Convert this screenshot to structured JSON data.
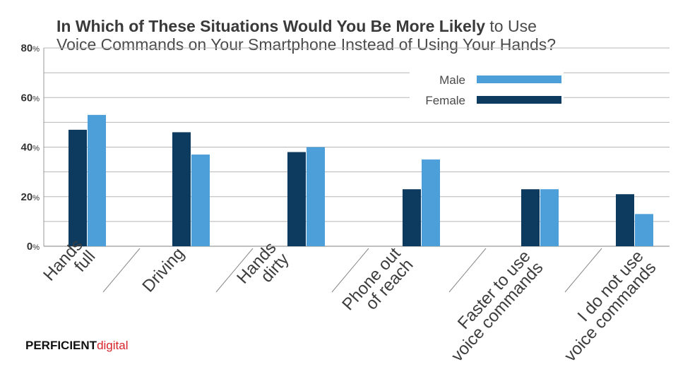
{
  "title": {
    "bold": "In Which of These Situations Would You Be More Likely",
    "line1_rest": "to Use",
    "line2": "Voice Commands on Your Smartphone Instead of Using Your Hands?"
  },
  "brand": {
    "part1": "PERFICIENT",
    "part2": "digital"
  },
  "colors": {
    "male": "#4d9fd9",
    "female": "#0d3b60",
    "grid": "#b5b5b5",
    "text": "#4a4a4a"
  },
  "chart_data": {
    "type": "bar",
    "title": "In Which of These Situations Would You Be More Likely to Use Voice Commands on Your Smartphone Instead of Using Your Hands?",
    "categories": [
      [
        "Hands",
        "full"
      ],
      [
        "Driving"
      ],
      [
        "Hands",
        "dirty"
      ],
      [
        "Phone out",
        "of reach"
      ],
      [
        "Faster to use",
        "voice commands"
      ],
      [
        "I do not use",
        "voice commands"
      ]
    ],
    "series": [
      {
        "name": "Female",
        "values": [
          47,
          46,
          38,
          23,
          23,
          21
        ]
      },
      {
        "name": "Male",
        "values": [
          53,
          37,
          40,
          35,
          23,
          13
        ]
      }
    ],
    "ylim": [
      0,
      80
    ],
    "yticks": [
      {
        "value": 0,
        "num": "0",
        "unit": "%"
      },
      {
        "value": 20,
        "num": "20",
        "unit": "%"
      },
      {
        "value": 40,
        "num": "40",
        "unit": "%"
      },
      {
        "value": 60,
        "num": "60",
        "unit": "%"
      },
      {
        "value": 80,
        "num": "80",
        "unit": "%"
      }
    ],
    "grid_step": 10,
    "grid": true,
    "legend": [
      {
        "label": "Male",
        "series": "Male"
      },
      {
        "label": "Female",
        "series": "Female"
      }
    ],
    "legend_position": "top-right"
  }
}
